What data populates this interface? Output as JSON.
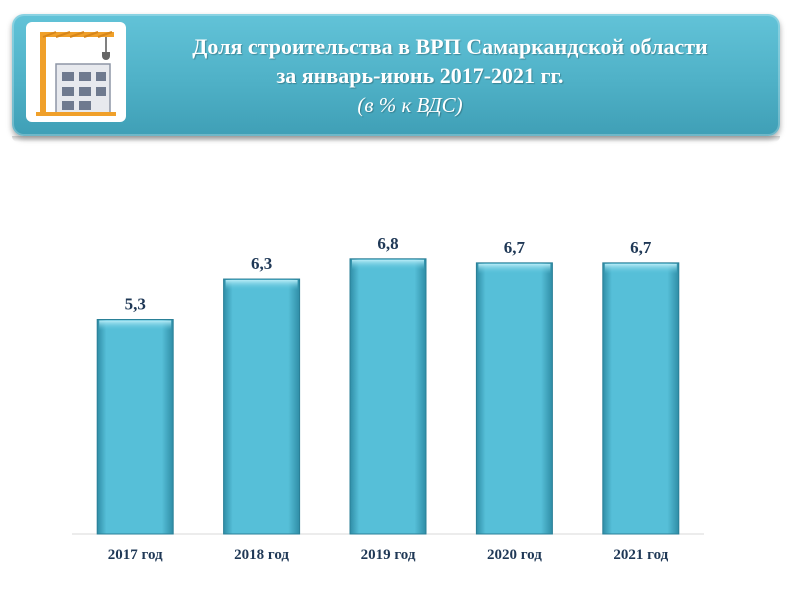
{
  "header": {
    "title_line1": "Доля строительства в ВРП Самаркандской области",
    "title_line2": "за январь-июнь 2017-2021 гг.",
    "subtitle": "(в % к ВДС)",
    "icon": "construction-crane-icon"
  },
  "colors": {
    "banner": "#4fb1c7",
    "bar": "#4fb6d0",
    "text": "#1f3856"
  },
  "chart_data": {
    "type": "bar",
    "title": "Доля строительства в ВРП Самаркандской области за январь-июнь 2017-2021 гг.",
    "subtitle": "(в % к ВДС)",
    "categories": [
      "2017 год",
      "2018 год",
      "2019 год",
      "2020 год",
      "2021 год"
    ],
    "values": [
      5.3,
      6.3,
      6.8,
      6.7,
      6.7
    ],
    "value_labels": [
      "5,3",
      "6,3",
      "6,8",
      "6,7",
      "6,7"
    ],
    "xlabel": "",
    "ylabel": "",
    "ylim": [
      0,
      8.5
    ],
    "grid": false,
    "legend": "none"
  }
}
